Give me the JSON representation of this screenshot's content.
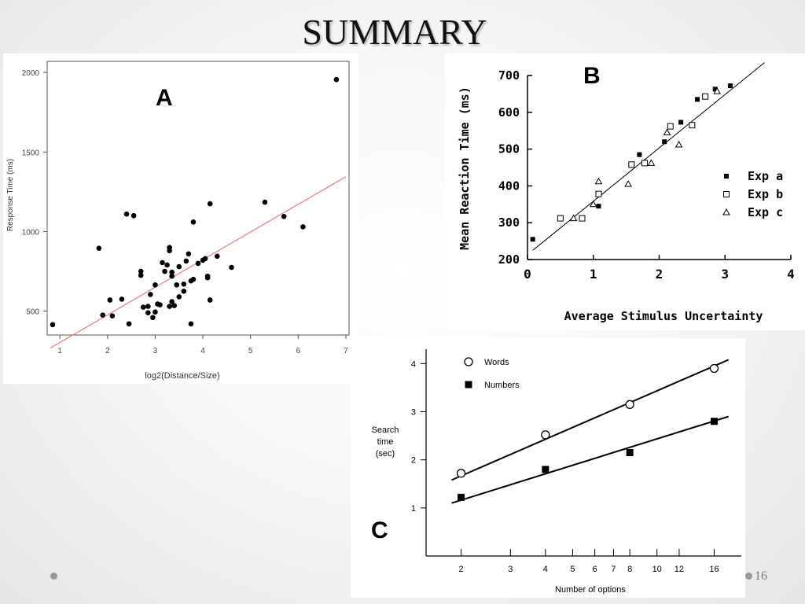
{
  "slide": {
    "title": "SUMMARY",
    "page_number": "16"
  },
  "chart_data": [
    {
      "panel": "A",
      "type": "scatter",
      "xlabel": "log2(Distance/Size)",
      "ylabel": "Response Time (ms)",
      "xlim": [
        0.8,
        7
      ],
      "ylim": [
        350,
        2050
      ],
      "xticks": [
        1,
        2,
        3,
        4,
        5,
        6,
        7
      ],
      "yticks": [
        500,
        1000,
        1500,
        2000
      ],
      "grid": false,
      "colors": {
        "points": "#000000",
        "fit_line": "#f08080"
      },
      "fit_line": {
        "x": [
          0.8,
          7
        ],
        "y": [
          268,
          1345
        ]
      },
      "series": [
        {
          "x": [
            0.85,
            1.82,
            1.9,
            2.05,
            2.1,
            2.3,
            2.4,
            2.45,
            2.55,
            2.7,
            2.7,
            2.75,
            2.85,
            2.85,
            2.9,
            2.95,
            3.0,
            3.0,
            3.05,
            3.1,
            3.15,
            3.2,
            3.25,
            3.3,
            3.3,
            3.3,
            3.35,
            3.35,
            3.35,
            3.4,
            3.45,
            3.5,
            3.5,
            3.6,
            3.6,
            3.65,
            3.7,
            3.75,
            3.75,
            3.8,
            3.8,
            3.9,
            4.0,
            4.05,
            4.1,
            4.1,
            4.15,
            4.15,
            4.3,
            4.6,
            5.3,
            5.7,
            6.1,
            6.8
          ],
          "y": [
            415,
            895,
            475,
            570,
            470,
            575,
            1110,
            420,
            1100,
            750,
            725,
            525,
            530,
            490,
            605,
            460,
            665,
            495,
            545,
            540,
            805,
            750,
            790,
            880,
            900,
            530,
            560,
            720,
            745,
            535,
            665,
            590,
            780,
            670,
            625,
            815,
            860,
            420,
            690,
            1060,
            700,
            800,
            820,
            830,
            720,
            710,
            1175,
            570,
            845,
            775,
            1185,
            1095,
            1030,
            1955
          ]
        }
      ]
    },
    {
      "panel": "B",
      "type": "scatter",
      "xlabel": "Average Stimulus Uncertainty",
      "ylabel": "Mean Reaction Time (ms)",
      "xlim": [
        0,
        4
      ],
      "ylim": [
        200,
        700
      ],
      "xticks": [
        0,
        1,
        2,
        3,
        4
      ],
      "yticks": [
        200,
        300,
        400,
        500,
        600,
        700
      ],
      "grid": false,
      "legend": "right",
      "fit_line": {
        "x": [
          0.08,
          3.6
        ],
        "y": [
          225,
          735
        ]
      },
      "series": [
        {
          "name": "Exp a",
          "marker": "filled-square",
          "x": [
            0.08,
            1.08,
            1.7,
            2.08,
            2.33,
            2.58,
            2.85,
            3.08
          ],
          "y": [
            255,
            345,
            485,
            520,
            573,
            635,
            663,
            672
          ]
        },
        {
          "name": "Exp b",
          "marker": "open-square",
          "x": [
            0.5,
            0.83,
            1.08,
            1.58,
            1.78,
            2.17,
            2.5,
            2.7
          ],
          "y": [
            312,
            312,
            378,
            458,
            462,
            562,
            565,
            643
          ]
        },
        {
          "name": "Exp c",
          "marker": "open-triangle",
          "x": [
            0.7,
            1.0,
            1.08,
            1.53,
            1.88,
            2.12,
            2.3,
            2.88
          ],
          "y": [
            312,
            350,
            412,
            405,
            462,
            545,
            512,
            657
          ]
        }
      ]
    },
    {
      "panel": "C",
      "type": "line",
      "xlabel": "Number of options",
      "ylabel": "Search time (sec)",
      "ylabel_lines": [
        "Search",
        "time",
        "(sec)"
      ],
      "x_scale": "log2",
      "xlim": [
        1.5,
        20
      ],
      "ylim": [
        0,
        4.3
      ],
      "xticks": [
        2,
        3,
        4,
        5,
        6,
        7,
        8,
        10,
        12,
        16
      ],
      "yticks": [
        1,
        2,
        3,
        4
      ],
      "grid": false,
      "legend": "top-left",
      "series": [
        {
          "name": "Words",
          "marker": "open-circle",
          "x": [
            2,
            4,
            8,
            16
          ],
          "y": [
            1.72,
            2.52,
            3.15,
            3.9
          ],
          "fit": {
            "x": [
              1.85,
              18
            ],
            "y": [
              1.58,
              4.08
            ]
          }
        },
        {
          "name": "Numbers",
          "marker": "filled-square",
          "x": [
            2,
            4,
            8,
            16
          ],
          "y": [
            1.22,
            1.8,
            2.15,
            2.8
          ],
          "fit": {
            "x": [
              1.85,
              18
            ],
            "y": [
              1.1,
              2.9
            ]
          }
        }
      ]
    }
  ]
}
